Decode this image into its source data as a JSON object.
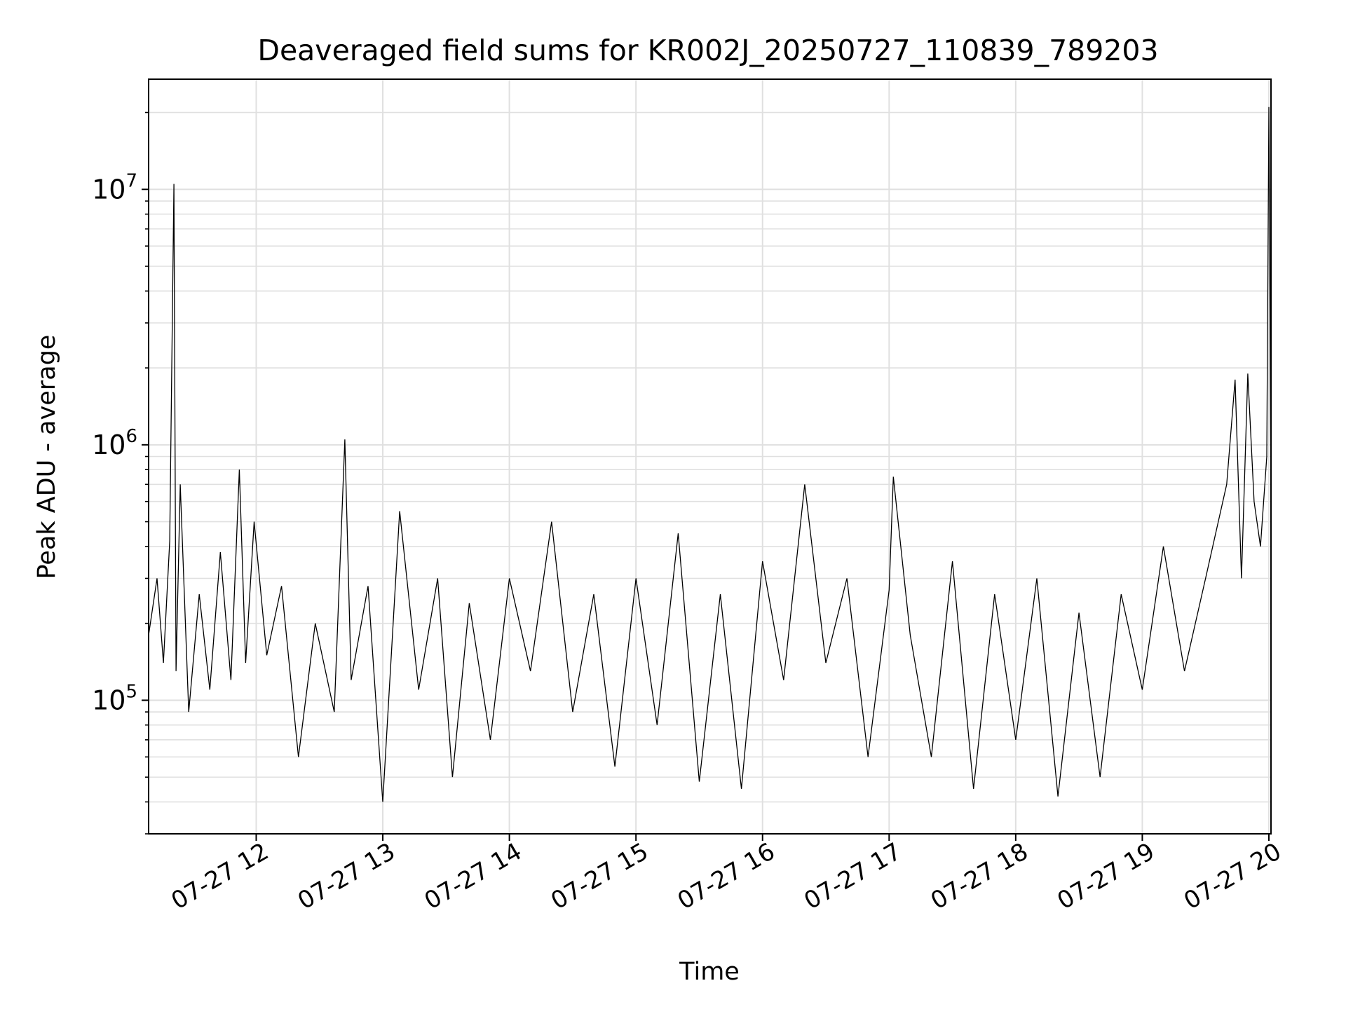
{
  "chart_data": {
    "type": "line",
    "title": "Deaveraged field sums for KR002J_20250727_110839_789203",
    "xlabel": "Time",
    "ylabel": "Peak ADU - average",
    "yscale": "log",
    "ylim": [
      30000,
      27000000
    ],
    "xlim": [
      "07-27 11:09",
      "07-27 20:01"
    ],
    "grid": "on",
    "line_color": "#000000",
    "x_ticks": [
      {
        "label": "07-27 12",
        "time": "07-27 12:00"
      },
      {
        "label": "07-27 13",
        "time": "07-27 13:00"
      },
      {
        "label": "07-27 14",
        "time": "07-27 14:00"
      },
      {
        "label": "07-27 15",
        "time": "07-27 15:00"
      },
      {
        "label": "07-27 16",
        "time": "07-27 16:00"
      },
      {
        "label": "07-27 17",
        "time": "07-27 17:00"
      },
      {
        "label": "07-27 18",
        "time": "07-27 18:00"
      },
      {
        "label": "07-27 19",
        "time": "07-27 19:00"
      },
      {
        "label": "07-27 20",
        "time": "07-27 20:00"
      }
    ],
    "y_ticks": [
      {
        "base": "10",
        "exp": "5",
        "value": 100000
      },
      {
        "base": "10",
        "exp": "6",
        "value": 1000000
      },
      {
        "base": "10",
        "exp": "7",
        "value": 10000000
      }
    ],
    "series": [
      {
        "points": [
          [
            "07-27 11:09",
            180000
          ],
          [
            "07-27 11:13",
            300000
          ],
          [
            "07-27 11:16",
            140000
          ],
          [
            "07-27 11:19",
            420000
          ],
          [
            "07-27 11:21",
            10500000
          ],
          [
            "07-27 11:22",
            130000
          ],
          [
            "07-27 11:24",
            700000
          ],
          [
            "07-27 11:28",
            90000
          ],
          [
            "07-27 11:33",
            260000
          ],
          [
            "07-27 11:38",
            110000
          ],
          [
            "07-27 11:43",
            380000
          ],
          [
            "07-27 11:48",
            120000
          ],
          [
            "07-27 11:52",
            800000
          ],
          [
            "07-27 11:55",
            140000
          ],
          [
            "07-27 11:59",
            500000
          ],
          [
            "07-27 12:05",
            150000
          ],
          [
            "07-27 12:12",
            280000
          ],
          [
            "07-27 12:20",
            60000
          ],
          [
            "07-27 12:28",
            200000
          ],
          [
            "07-27 12:37",
            90000
          ],
          [
            "07-27 12:42",
            1050000
          ],
          [
            "07-27 12:45",
            120000
          ],
          [
            "07-27 12:53",
            280000
          ],
          [
            "07-27 13:00",
            40000
          ],
          [
            "07-27 13:08",
            550000
          ],
          [
            "07-27 13:17",
            110000
          ],
          [
            "07-27 13:26",
            300000
          ],
          [
            "07-27 13:33",
            50000
          ],
          [
            "07-27 13:41",
            240000
          ],
          [
            "07-27 13:51",
            70000
          ],
          [
            "07-27 14:00",
            300000
          ],
          [
            "07-27 14:10",
            130000
          ],
          [
            "07-27 14:20",
            500000
          ],
          [
            "07-27 14:30",
            90000
          ],
          [
            "07-27 14:40",
            260000
          ],
          [
            "07-27 14:50",
            55000
          ],
          [
            "07-27 15:00",
            300000
          ],
          [
            "07-27 15:10",
            80000
          ],
          [
            "07-27 15:20",
            450000
          ],
          [
            "07-27 15:30",
            48000
          ],
          [
            "07-27 15:40",
            260000
          ],
          [
            "07-27 15:50",
            45000
          ],
          [
            "07-27 16:00",
            350000
          ],
          [
            "07-27 16:10",
            120000
          ],
          [
            "07-27 16:20",
            700000
          ],
          [
            "07-27 16:30",
            140000
          ],
          [
            "07-27 16:40",
            300000
          ],
          [
            "07-27 16:50",
            60000
          ],
          [
            "07-27 17:00",
            270000
          ],
          [
            "07-27 17:02",
            750000
          ],
          [
            "07-27 17:10",
            180000
          ],
          [
            "07-27 17:20",
            60000
          ],
          [
            "07-27 17:30",
            350000
          ],
          [
            "07-27 17:40",
            45000
          ],
          [
            "07-27 17:50",
            260000
          ],
          [
            "07-27 18:00",
            70000
          ],
          [
            "07-27 18:10",
            300000
          ],
          [
            "07-27 18:20",
            42000
          ],
          [
            "07-27 18:30",
            220000
          ],
          [
            "07-27 18:40",
            50000
          ],
          [
            "07-27 18:50",
            260000
          ],
          [
            "07-27 19:00",
            110000
          ],
          [
            "07-27 19:10",
            400000
          ],
          [
            "07-27 19:20",
            130000
          ],
          [
            "07-27 19:30",
            300000
          ],
          [
            "07-27 19:36",
            500000
          ],
          [
            "07-27 19:40",
            700000
          ],
          [
            "07-27 19:44",
            1800000
          ],
          [
            "07-27 19:47",
            300000
          ],
          [
            "07-27 19:50",
            1900000
          ],
          [
            "07-27 19:53",
            600000
          ],
          [
            "07-27 19:56",
            400000
          ],
          [
            "07-27 19:59",
            900000
          ],
          [
            "07-27 20:00",
            21000000
          ],
          [
            "07-27 20:01",
            650000
          ]
        ]
      }
    ]
  }
}
